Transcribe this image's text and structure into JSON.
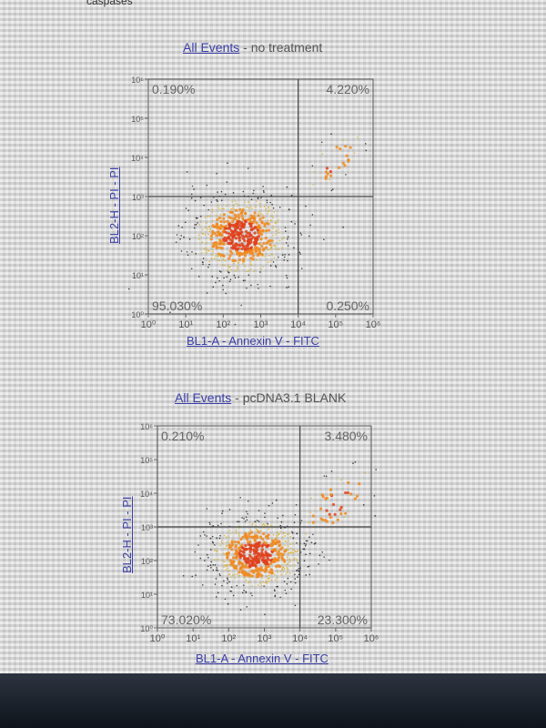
{
  "page": {
    "crumb": "caspases"
  },
  "chart_data": [
    {
      "type": "scatter",
      "title_link": "All Events",
      "title_rest": " - no treatment",
      "xlabel": "BL1-A - Annexin V - FITC",
      "ylabel": "BL2-H - PI - PI",
      "x_scale": "log",
      "y_scale": "log",
      "xlim": [
        1,
        1000000
      ],
      "ylim": [
        1,
        1000000
      ],
      "x_ticks": [
        "10⁰",
        "10¹",
        "10²",
        "10³",
        "10⁴",
        "10⁵",
        "10⁶"
      ],
      "y_ticks": [
        "10⁰",
        "10¹",
        "10²",
        "10³",
        "10⁴",
        "10⁵",
        "10⁶"
      ],
      "gate": {
        "x": 10000,
        "y": 1000
      },
      "quadrants": {
        "upper_left": "0.190%",
        "upper_right": "4.220%",
        "lower_left": "95.030%",
        "lower_right": "0.250%"
      },
      "clusters": [
        {
          "x": 300,
          "y": 100,
          "spread": 0.35,
          "weight": 0.95
        },
        {
          "x": 100000,
          "y": 8000,
          "spread": 0.2,
          "weight": 0.045
        }
      ]
    },
    {
      "type": "scatter",
      "title_link": "All Events",
      "title_rest": " - pcDNA3.1 BLANK",
      "xlabel": "BL1-A - Annexin V - FITC",
      "ylabel": "BL2-H - PI - PI",
      "x_scale": "log",
      "y_scale": "log",
      "xlim": [
        1,
        1000000
      ],
      "ylim": [
        1,
        1000000
      ],
      "x_ticks": [
        "10⁰",
        "10¹",
        "10²",
        "10³",
        "10⁴",
        "10⁵",
        "10⁶"
      ],
      "y_ticks": [
        "10⁰",
        "10¹",
        "10²",
        "10³",
        "10⁴",
        "10⁵",
        "10⁶"
      ],
      "gate": {
        "x": 10000,
        "y": 1000
      },
      "quadrants": {
        "upper_left": "0.210%",
        "upper_right": "3.480%",
        "lower_left": "73.020%",
        "lower_right": "23.300%"
      },
      "clusters": [
        {
          "x": 600,
          "y": 150,
          "spread": 0.35,
          "weight": 0.93
        },
        {
          "x": 100000,
          "y": 5000,
          "spread": 0.3,
          "weight": 0.07
        }
      ]
    }
  ]
}
